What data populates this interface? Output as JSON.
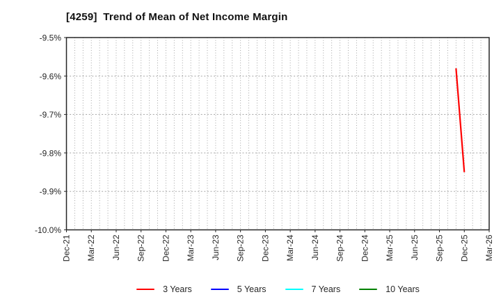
{
  "chart_data": {
    "type": "line",
    "title": "[4259]  Trend of Mean of Net Income Margin",
    "xlabel": "",
    "ylabel": "",
    "x_start_month": "Dec-21",
    "x_end_month": "Mar-26",
    "months_per_labeled_tick": 3,
    "x_tick_labels": [
      "Dec-21",
      "Mar-22",
      "Jun-22",
      "Sep-22",
      "Dec-22",
      "Mar-23",
      "Jun-23",
      "Sep-23",
      "Dec-23",
      "Mar-24",
      "Jun-24",
      "Sep-24",
      "Dec-24",
      "Mar-25",
      "Jun-25",
      "Sep-25",
      "Dec-25",
      "Mar-26"
    ],
    "y_tick_labels": [
      "-9.5%",
      "-9.6%",
      "-9.7%",
      "-9.8%",
      "-9.9%",
      "-10.0%"
    ],
    "y_ticks": [
      -9.5,
      -9.6,
      -9.7,
      -9.8,
      -9.9,
      -10.0
    ],
    "ylim": [
      -10.0,
      -9.5
    ],
    "grid": {
      "visible": true,
      "style": "dotted",
      "vertical_spacing": "monthly",
      "horizontal_spacing": "0.1%"
    },
    "legend_position": "bottom-center",
    "series": [
      {
        "name": "3 Years",
        "color": "#ff0000",
        "points": [
          {
            "month": "Nov-25",
            "month_index": 47,
            "value": -9.58
          },
          {
            "month": "Dec-25",
            "month_index": 48,
            "value": -9.85
          }
        ]
      },
      {
        "name": "5 Years",
        "color": "#0000ff",
        "points": []
      },
      {
        "name": "7 Years",
        "color": "#00ffff",
        "points": []
      },
      {
        "name": "10 Years",
        "color": "#008000",
        "points": []
      }
    ],
    "colors": {
      "background": "#ffffff",
      "plot_border": "#262626",
      "grid": "#999999",
      "tick_text": "#262626",
      "title_text": "#111111"
    }
  }
}
